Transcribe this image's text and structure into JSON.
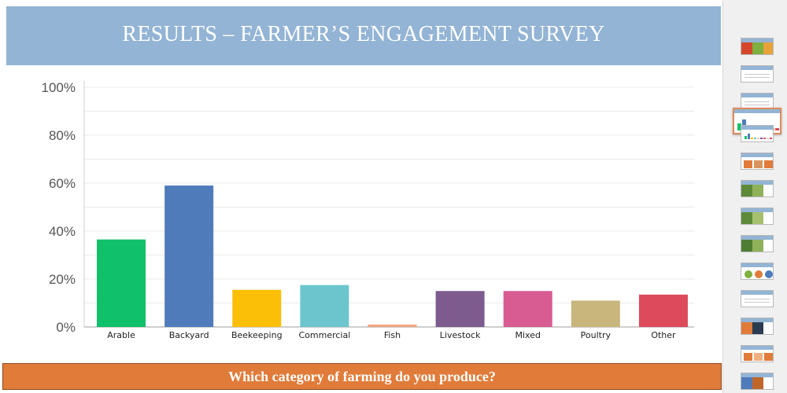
{
  "slide": {
    "title": "RESULTS – FARMER’S ENGAGEMENT SURVEY",
    "question": "Which category of farming do you produce?"
  },
  "chart_data": {
    "type": "bar",
    "categories": [
      "Arable",
      "Backyard",
      "Beekeeping",
      "Commercial",
      "Fish",
      "Livestock",
      "Mixed",
      "Poultry",
      "Other"
    ],
    "values": [
      36.5,
      59,
      15.5,
      17.5,
      1,
      15,
      15,
      11,
      13.5
    ],
    "colors": [
      "#10c06a",
      "#4f7bbb",
      "#fcbf07",
      "#6cc5cd",
      "#f4a47f",
      "#7d5b8e",
      "#d85b92",
      "#c9b67c",
      "#dc4a5c"
    ],
    "yticks": [
      "100%",
      "80%",
      "60%",
      "40%",
      "20%",
      "0%"
    ],
    "ylim": [
      0,
      100
    ],
    "grid": true
  },
  "thumbnails": [
    {
      "kind": "image",
      "colors": [
        "#d4472c",
        "#7fb040",
        "#e8a23a"
      ]
    },
    {
      "kind": "text"
    },
    {
      "kind": "text"
    },
    {
      "kind": "chart",
      "selected": true
    },
    {
      "kind": "chart-small"
    },
    {
      "kind": "bars",
      "colors": [
        "#e07b39",
        "#d9955e",
        "#e07b39"
      ]
    },
    {
      "kind": "image",
      "colors": [
        "#5d8a3a",
        "#8fb15a"
      ]
    },
    {
      "kind": "image",
      "colors": [
        "#5d8a3a",
        "#a6c070"
      ]
    },
    {
      "kind": "image",
      "colors": [
        "#4e7e34",
        "#8fb15a"
      ]
    },
    {
      "kind": "pies",
      "colors": [
        "#7fb040",
        "#e07b39",
        "#4f7bbb"
      ]
    },
    {
      "kind": "text"
    },
    {
      "kind": "photo",
      "colors": [
        "#e07b39",
        "#2a3b52"
      ]
    },
    {
      "kind": "bars",
      "colors": [
        "#e07b39",
        "#f0b080"
      ]
    },
    {
      "kind": "image",
      "colors": [
        "#4f7bbb",
        "#c0662a"
      ]
    }
  ]
}
